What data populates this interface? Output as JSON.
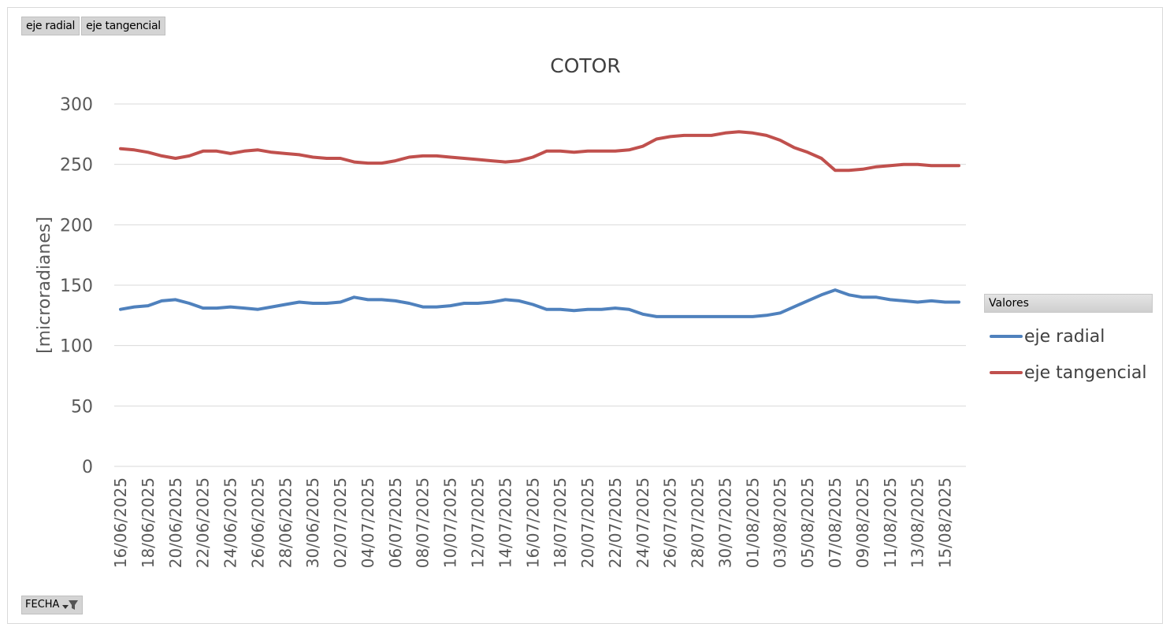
{
  "field_buttons": [
    "eje radial",
    "eje tangencial"
  ],
  "axis_filter_button": {
    "label": "FECHA",
    "icon": "filter-dropdown-icon"
  },
  "legend_title": "Valores",
  "chart_data": {
    "type": "line",
    "title": "COTOR",
    "xlabel": "",
    "ylabel": "[microradianes]",
    "ylim": [
      0,
      300
    ],
    "yticks": [
      0,
      50,
      100,
      150,
      200,
      250,
      300
    ],
    "grid": true,
    "legend_placement": "right",
    "x": [
      "16/06/2025",
      "17/06/2025",
      "18/06/2025",
      "19/06/2025",
      "20/06/2025",
      "21/06/2025",
      "22/06/2025",
      "23/06/2025",
      "24/06/2025",
      "25/06/2025",
      "26/06/2025",
      "27/06/2025",
      "28/06/2025",
      "29/06/2025",
      "30/06/2025",
      "01/07/2025",
      "02/07/2025",
      "03/07/2025",
      "04/07/2025",
      "05/07/2025",
      "06/07/2025",
      "07/07/2025",
      "08/07/2025",
      "09/07/2025",
      "10/07/2025",
      "11/07/2025",
      "12/07/2025",
      "13/07/2025",
      "14/07/2025",
      "15/07/2025",
      "16/07/2025",
      "17/07/2025",
      "18/07/2025",
      "19/07/2025",
      "20/07/2025",
      "21/07/2025",
      "22/07/2025",
      "23/07/2025",
      "24/07/2025",
      "25/07/2025",
      "26/07/2025",
      "27/07/2025",
      "28/07/2025",
      "29/07/2025",
      "30/07/2025",
      "31/07/2025",
      "01/08/2025",
      "02/08/2025",
      "03/08/2025",
      "04/08/2025",
      "05/08/2025",
      "06/08/2025",
      "07/08/2025",
      "08/08/2025",
      "09/08/2025",
      "10/08/2025",
      "11/08/2025",
      "12/08/2025",
      "13/08/2025",
      "14/08/2025",
      "15/08/2025",
      "16/08/2025"
    ],
    "tick_labels": [
      "16/06/2025",
      "18/06/2025",
      "20/06/2025",
      "22/06/2025",
      "24/06/2025",
      "26/06/2025",
      "28/06/2025",
      "30/06/2025",
      "02/07/2025",
      "04/07/2025",
      "06/07/2025",
      "08/07/2025",
      "10/07/2025",
      "12/07/2025",
      "14/07/2025",
      "16/07/2025",
      "18/07/2025",
      "20/07/2025",
      "22/07/2025",
      "24/07/2025",
      "26/07/2025",
      "28/07/2025",
      "30/07/2025",
      "01/08/2025",
      "03/08/2025",
      "05/08/2025",
      "07/08/2025",
      "09/08/2025",
      "11/08/2025",
      "13/08/2025",
      "15/08/2025"
    ],
    "series": [
      {
        "name": "eje radial",
        "color": "#4f81bd",
        "values": [
          130,
          132,
          133,
          137,
          138,
          135,
          131,
          131,
          132,
          131,
          130,
          132,
          134,
          136,
          135,
          135,
          136,
          140,
          138,
          138,
          137,
          135,
          132,
          132,
          133,
          135,
          135,
          136,
          138,
          137,
          134,
          130,
          130,
          129,
          130,
          130,
          131,
          130,
          126,
          124,
          124,
          124,
          124,
          124,
          124,
          124,
          124,
          125,
          127,
          132,
          137,
          142,
          146,
          142,
          140,
          140,
          138,
          137,
          136,
          137,
          136,
          136
        ]
      },
      {
        "name": "eje tangencial",
        "color": "#c0504d",
        "values": [
          263,
          262,
          260,
          257,
          255,
          257,
          261,
          261,
          259,
          261,
          262,
          260,
          259,
          258,
          256,
          255,
          255,
          252,
          251,
          251,
          253,
          256,
          257,
          257,
          256,
          255,
          254,
          253,
          252,
          253,
          256,
          261,
          261,
          260,
          261,
          261,
          261,
          262,
          265,
          271,
          273,
          274,
          274,
          274,
          276,
          277,
          276,
          274,
          270,
          264,
          260,
          255,
          245,
          245,
          246,
          248,
          249,
          250,
          250,
          249,
          249,
          249
        ]
      }
    ]
  }
}
